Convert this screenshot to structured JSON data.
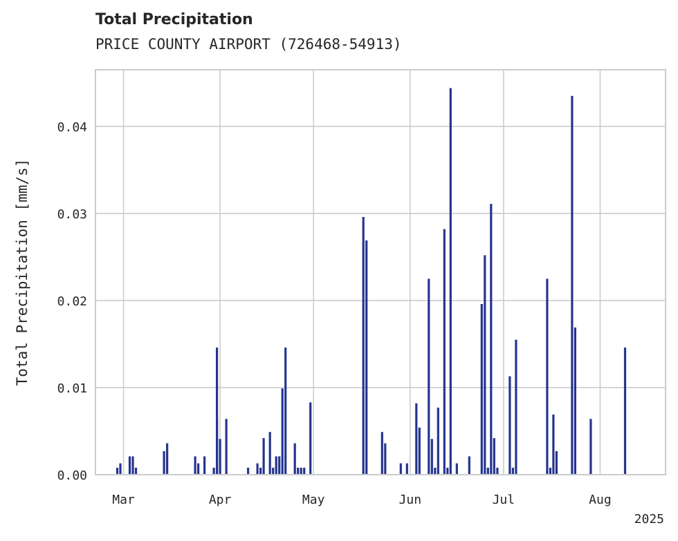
{
  "chart_data": {
    "type": "bar",
    "title": "Total Precipitation",
    "subtitle": "PRICE COUNTY AIRPORT (726468-54913)",
    "ylabel": "Total Precipitation [mm/s]",
    "xlabel": "",
    "x_range": [
      "2025-02-20",
      "2025-08-22"
    ],
    "ylim": [
      0,
      0.0465
    ],
    "yticks": [
      0,
      0.01,
      0.02,
      0.03,
      0.04
    ],
    "ytick_labels": [
      "0.00",
      "0.01",
      "0.02",
      "0.03",
      "0.04"
    ],
    "xticks": [
      "2025-03-01",
      "2025-04-01",
      "2025-05-01",
      "2025-06-01",
      "2025-07-01",
      "2025-08-01"
    ],
    "xtick_labels": [
      "Mar",
      "Apr",
      "May",
      "Jun",
      "Jul",
      "Aug"
    ],
    "x_offset_label": "2025",
    "grid": true,
    "bar_color": "#25348f",
    "series": [
      {
        "x": [
          "2025-02-27",
          "2025-02-28",
          "2025-03-03",
          "2025-03-04",
          "2025-03-05",
          "2025-03-14",
          "2025-03-15",
          "2025-03-24",
          "2025-03-25",
          "2025-03-27",
          "2025-03-30",
          "2025-03-31",
          "2025-03-31",
          "2025-04-01",
          "2025-04-03",
          "2025-04-10",
          "2025-04-13",
          "2025-04-14",
          "2025-04-15",
          "2025-04-17",
          "2025-04-18",
          "2025-04-19",
          "2025-04-20",
          "2025-04-21",
          "2025-04-22",
          "2025-04-25",
          "2025-04-26",
          "2025-04-27",
          "2025-04-28",
          "2025-04-30",
          "2025-05-17",
          "2025-05-18",
          "2025-05-23",
          "2025-05-24",
          "2025-05-29",
          "2025-05-31",
          "2025-06-03",
          "2025-06-04",
          "2025-06-07",
          "2025-06-08",
          "2025-06-09",
          "2025-06-10",
          "2025-06-12",
          "2025-06-13",
          "2025-06-14",
          "2025-06-16",
          "2025-06-20",
          "2025-06-24",
          "2025-06-25",
          "2025-06-26",
          "2025-06-27",
          "2025-06-28",
          "2025-06-29",
          "2025-07-03",
          "2025-07-04",
          "2025-07-05",
          "2025-07-15",
          "2025-07-16",
          "2025-07-17",
          "2025-07-18",
          "2025-07-23",
          "2025-07-24",
          "2025-07-29",
          "2025-08-09"
        ],
        "values": [
          0.0008,
          0.0013,
          0.0021,
          0.0021,
          0.0008,
          0.0027,
          0.0036,
          0.0021,
          0.0013,
          0.0021,
          0.0008,
          0.0065,
          0.0146,
          0.0041,
          0.0064,
          0.0008,
          0.0013,
          0.0008,
          0.0042,
          0.0049,
          0.0008,
          0.0021,
          0.0021,
          0.0099,
          0.0146,
          0.0036,
          0.0008,
          0.0008,
          0.0008,
          0.0083,
          0.0296,
          0.0269,
          0.0049,
          0.0036,
          0.0013,
          0.0013,
          0.0082,
          0.0054,
          0.0225,
          0.0041,
          0.0008,
          0.0077,
          0.0282,
          0.0008,
          0.0444,
          0.0013,
          0.0021,
          0.0196,
          0.0252,
          0.0008,
          0.0311,
          0.0042,
          0.0008,
          0.0113,
          0.0008,
          0.0155,
          0.0225,
          0.0008,
          0.0069,
          0.0027,
          0.0435,
          0.0169,
          0.0064,
          0.0146
        ]
      }
    ]
  }
}
